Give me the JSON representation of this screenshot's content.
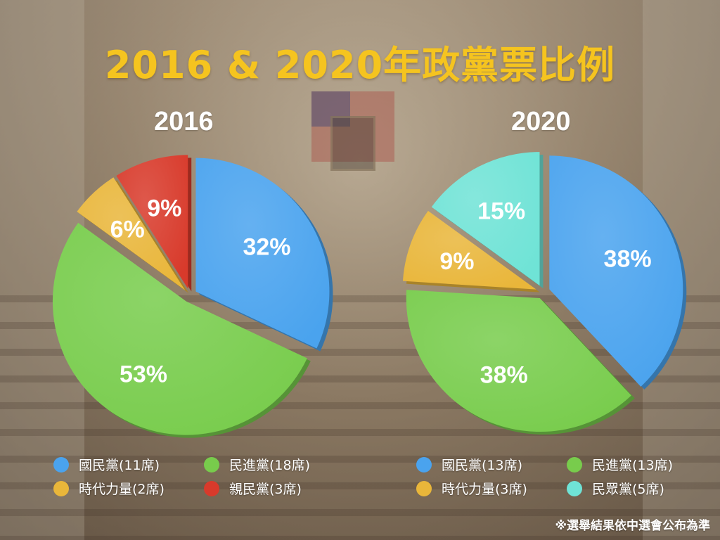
{
  "title": "2016 & 2020年政黨票比例",
  "footnote": "※選舉結果依中選會公布為準",
  "colors": {
    "kmt": "#4aa3ee",
    "dpp": "#78cc4c",
    "npp": "#e9b63a",
    "pfp": "#d83a2b",
    "tpp": "#6fe3d6",
    "title": "#f5c41f"
  },
  "chart_data": [
    {
      "type": "pie",
      "title": "2016",
      "slices": [
        {
          "label": "國民黨(11席)",
          "value": 32,
          "display": "32%",
          "color": "#4aa3ee",
          "icon": "blue-dot"
        },
        {
          "label": "民進黨(18席)",
          "value": 53,
          "display": "53%",
          "color": "#78cc4c",
          "icon": "green-dot"
        },
        {
          "label": "時代力量(2席)",
          "value": 6,
          "display": "6%",
          "color": "#e9b63a",
          "icon": "yellow-dot"
        },
        {
          "label": "親民黨(3席)",
          "value": 9,
          "display": "9%",
          "color": "#d83a2b",
          "icon": "red-dot"
        }
      ],
      "legend": [
        "國民黨(11席)",
        "民進黨(18席)",
        "時代力量(2席)",
        "親民黨(3席)"
      ],
      "legend_placement": "bottom"
    },
    {
      "type": "pie",
      "title": "2020",
      "slices": [
        {
          "label": "國民黨(13席)",
          "value": 38,
          "display": "38%",
          "color": "#4aa3ee",
          "icon": "blue-dot"
        },
        {
          "label": "民進黨(13席)",
          "value": 38,
          "display": "38%",
          "color": "#78cc4c",
          "icon": "green-dot"
        },
        {
          "label": "時代力量(3席)",
          "value": 9,
          "display": "9%",
          "color": "#e9b63a",
          "icon": "yellow-dot"
        },
        {
          "label": "民眾黨(5席)",
          "value": 15,
          "display": "15%",
          "color": "#6fe3d6",
          "icon": "teal-dot"
        }
      ],
      "legend": [
        "國民黨(13席)",
        "民進黨(13席)",
        "時代力量(3席)",
        "民眾黨(5席)"
      ],
      "legend_placement": "bottom"
    }
  ]
}
